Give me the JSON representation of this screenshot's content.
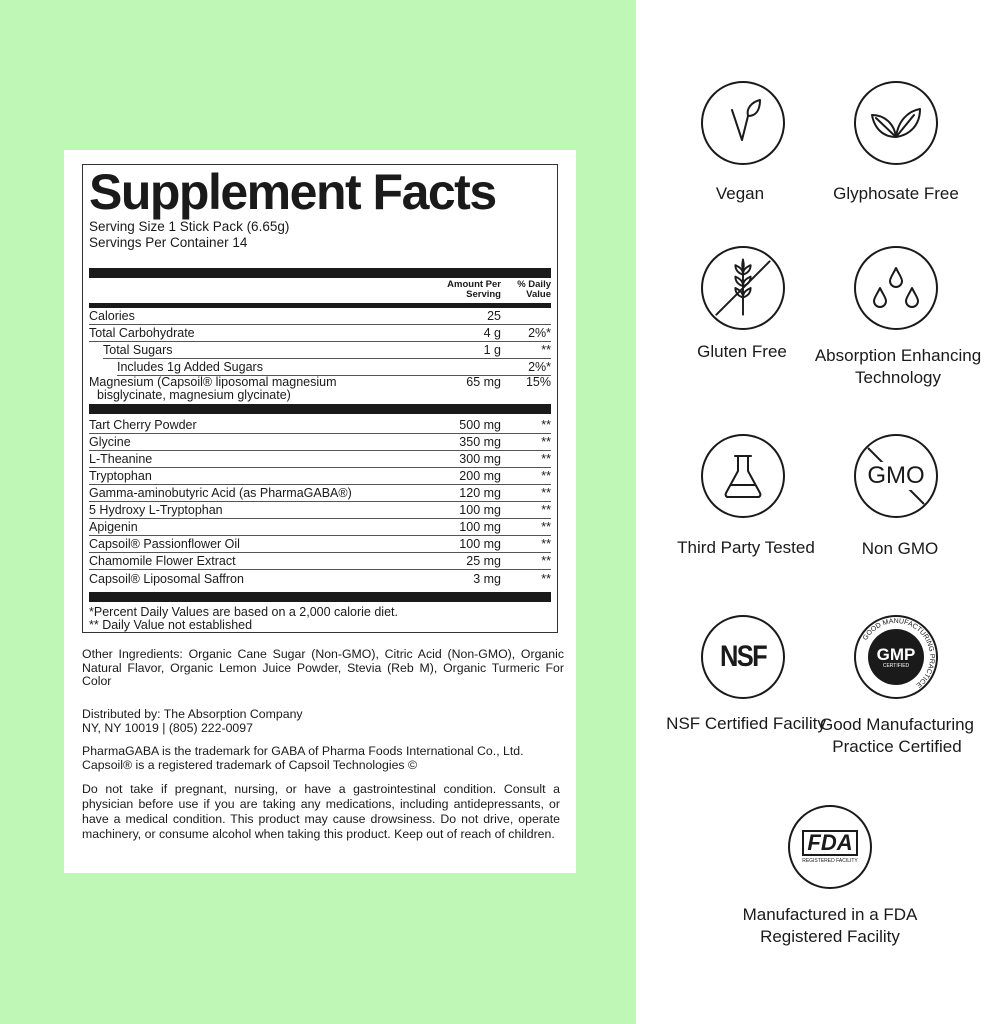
{
  "facts": {
    "title": "Supplement Facts",
    "serving_size": "Serving Size 1 Stick Pack (6.65g)",
    "servings_per_container": "Servings Per Container 14",
    "col_amount": "Amount Per Serving",
    "col_dv": "% Daily Value",
    "nutrients": [
      {
        "name": "Calories",
        "amount": "25",
        "dv": ""
      },
      {
        "name": "Total Carbohydrate",
        "amount": "4 g",
        "dv": "2%*"
      },
      {
        "name": "Total Sugars",
        "amount": "1 g",
        "dv": "**"
      },
      {
        "name": "Includes 1g Added Sugars",
        "amount": "",
        "dv": "2%*"
      },
      {
        "name": "Magnesium (Capsoil® liposomal magnesium",
        "name2": "bisglycinate, magnesium glycinate)",
        "amount": "65 mg",
        "dv": "15%"
      }
    ],
    "ingredients": [
      {
        "name": "Tart Cherry Powder",
        "amount": "500 mg",
        "dv": "**"
      },
      {
        "name": "Glycine",
        "amount": "350 mg",
        "dv": "**"
      },
      {
        "name": "L-Theanine",
        "amount": "300 mg",
        "dv": "**"
      },
      {
        "name": "Tryptophan",
        "amount": "200 mg",
        "dv": "**"
      },
      {
        "name": "Gamma-aminobutyric Acid (as PharmaGABA®)",
        "amount": "120 mg",
        "dv": "**"
      },
      {
        "name": "5 Hydroxy L-Tryptophan",
        "amount": "100 mg",
        "dv": "**"
      },
      {
        "name": "Apigenin",
        "amount": "100 mg",
        "dv": "**"
      },
      {
        "name": "Capsoil® Passionflower Oil",
        "amount": "100 mg",
        "dv": "**"
      },
      {
        "name": "Chamomile Flower Extract",
        "amount": "25 mg",
        "dv": "**"
      },
      {
        "name": "Capsoil® Liposomal Saffron",
        "amount": "3 mg",
        "dv": "**"
      }
    ],
    "footnote1": "*Percent Daily Values are based on a 2,000 calorie diet.",
    "footnote2": "** Daily Value not established"
  },
  "other_ingredients": "Other Ingredients: Organic Cane Sugar (Non-GMO), Citric Acid (Non-GMO), Organic Natural Flavor, Organic Lemon Juice Powder, Stevia (Reb M), Organic Turmeric For Color",
  "distributor1": "Distributed by: The Absorption Company",
  "distributor2": "NY, NY 10019  |  (805) 222-0097",
  "trademark1": "PharmaGABA is the trademark for GABA of Pharma Foods International Co., Ltd.",
  "trademark2": "Capsoil® is a registered trademark of Capsoil Technologies  ©",
  "warning": "Do not take if pregnant, nursing, or have a gastrointestinal condition. Consult a physician before use if you are taking any medications, including antidepressants, or have a medical condition. This product may cause drowsiness. Do not drive, operate machinery, or consume alcohol when taking this product. Keep out of reach of children.",
  "badges": [
    {
      "icon": "leaf-icon",
      "label": "Vegan"
    },
    {
      "icon": "leaves-icon",
      "label": "Glyphosate Free"
    },
    {
      "icon": "wheat-crossed-icon",
      "label": "Gluten Free"
    },
    {
      "icon": "droplets-icon",
      "label": "Absorption Enhancing Technology"
    },
    {
      "icon": "flask-icon",
      "label": "Third Party Tested"
    },
    {
      "icon": "gmo-crossed-icon",
      "label": "Non GMO",
      "text": "GMO"
    },
    {
      "icon": "nsf-icon",
      "label": "NSF Certified Facility",
      "text": "NSF"
    },
    {
      "icon": "gmp-icon",
      "label": "Good Manufacturing Practice Certified",
      "text": "GMP",
      "sub": "CERTIFIED",
      "ring": "GOOD MANUFACTURING PRACTICE"
    },
    {
      "icon": "fda-icon",
      "label": "Manufactured in a FDA Registered Facility",
      "text": "FDA",
      "sub": "REGISTERED FACILITY"
    }
  ],
  "colors": {
    "background_green": "#bff7b6",
    "ink": "#1a1a1a"
  }
}
